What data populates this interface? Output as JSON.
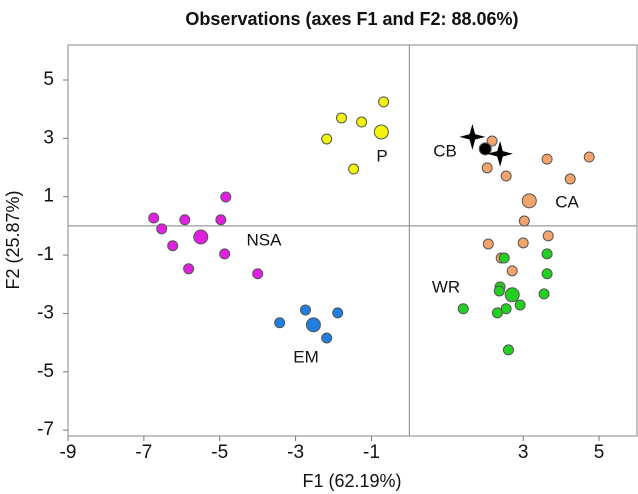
{
  "chart_data": {
    "type": "scatter",
    "title": "Observations (axes F1 and F2: 88.06%)",
    "x_label": "F1 (62.19%)",
    "y_label": "F2 (25.87%)",
    "xlim": [
      -9,
      6
    ],
    "ylim": [
      -7.2,
      6.2
    ],
    "xticks": [
      -9,
      -7,
      -5,
      -3,
      -1,
      3,
      5
    ],
    "yticks": [
      -7,
      -5,
      -3,
      -1,
      1,
      3,
      5
    ],
    "series": [
      {
        "name": "P",
        "color": "#f2f20a",
        "x": [
          -0.68,
          -1.79,
          -1.26,
          -2.18,
          -0.74,
          -1.47
        ],
        "y": [
          4.25,
          3.7,
          3.56,
          2.98,
          3.22,
          1.95
        ],
        "marker_sizes": [
          5,
          5,
          5,
          5,
          7,
          5
        ]
      },
      {
        "name": "CA",
        "color": "#f4a46b",
        "x": [
          2.18,
          2.05,
          2.55,
          3.63,
          4.74,
          4.24,
          3.16,
          3.03,
          2.08,
          3.0,
          3.66,
          2.42,
          2.71
        ],
        "y": [
          2.91,
          1.99,
          1.71,
          2.29,
          2.36,
          1.61,
          0.86,
          0.17,
          -0.62,
          -0.58,
          -0.34,
          -1.1,
          -1.54
        ],
        "marker_sizes": [
          5,
          5,
          5,
          5,
          5,
          5,
          7,
          5,
          5,
          5,
          5,
          5,
          5
        ]
      },
      {
        "name": "CB",
        "color": "#000000",
        "x": [
          1.66,
          2.0,
          2.39
        ],
        "y": [
          3.05,
          2.64,
          2.47
        ],
        "marker_sizes": [
          9,
          6,
          9
        ],
        "markers": [
          "star",
          "circle",
          "star"
        ]
      },
      {
        "name": "WR",
        "color": "#22d022",
        "x": [
          3.63,
          3.63,
          2.39,
          3.55,
          2.71,
          2.37,
          2.92,
          2.55,
          2.32,
          1.42,
          2.61,
          2.5
        ],
        "y": [
          -0.96,
          -1.64,
          -2.09,
          -2.33,
          -2.36,
          -2.23,
          -2.71,
          -2.84,
          -2.98,
          -2.84,
          -4.25,
          -1.1
        ],
        "marker_sizes": [
          5,
          5,
          5,
          5,
          7,
          5,
          5,
          5,
          5,
          5,
          5,
          5
        ]
      },
      {
        "name": "NSA",
        "color": "#e020e0",
        "x": [
          -4.84,
          -6.74,
          -6.53,
          -5.92,
          -4.97,
          -5.5,
          -6.24,
          -4.87,
          -5.82,
          -4.0
        ],
        "y": [
          0.99,
          0.27,
          -0.1,
          0.21,
          0.21,
          -0.38,
          -0.68,
          -0.96,
          -1.47,
          -1.64
        ],
        "marker_sizes": [
          5,
          5,
          5,
          5,
          5,
          7,
          5,
          5,
          5,
          5
        ]
      },
      {
        "name": "EM",
        "color": "#1e7fe0",
        "x": [
          -2.74,
          -1.89,
          -3.42,
          -2.53,
          -2.18
        ],
        "y": [
          -2.88,
          -2.98,
          -3.32,
          -3.39,
          -3.84
        ],
        "marker_sizes": [
          5,
          5,
          5,
          7,
          5
        ]
      }
    ]
  }
}
